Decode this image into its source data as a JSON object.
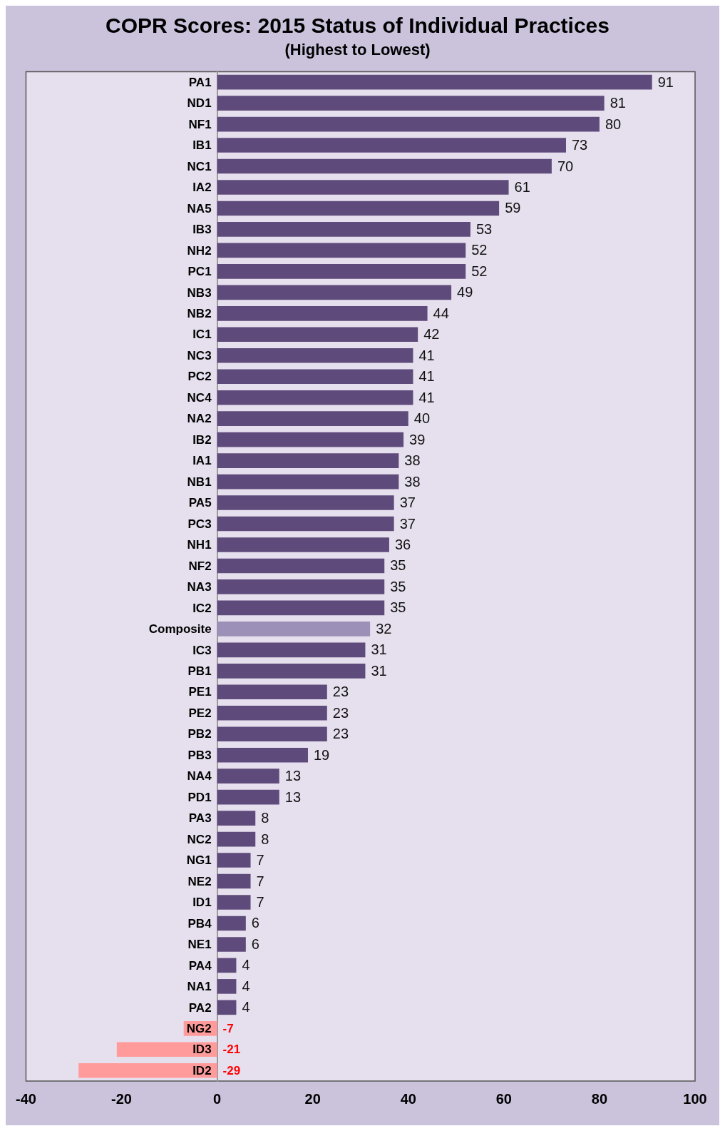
{
  "chart_data": {
    "type": "bar",
    "orientation": "horizontal",
    "title": "COPR Scores: 2015 Status of Individual Practices",
    "subtitle": "(Highest to Lowest)",
    "categories": [
      "PA1",
      "ND1",
      "NF1",
      "IB1",
      "NC1",
      "IA2",
      "NA5",
      "IB3",
      "NH2",
      "PC1",
      "NB3",
      "NB2",
      "IC1",
      "NC3",
      "PC2",
      "NC4",
      "NA2",
      "IB2",
      "IA1",
      "NB1",
      "PA5",
      "PC3",
      "NH1",
      "NF2",
      "NA3",
      "IC2",
      "Composite",
      "IC3",
      "PB1",
      "PE1",
      "PE2",
      "PB2",
      "PB3",
      "NA4",
      "PD1",
      "PA3",
      "NC2",
      "NG1",
      "NE2",
      "ID1",
      "PB4",
      "NE1",
      "PA4",
      "NA1",
      "PA2",
      "NG2",
      "ID3",
      "ID2"
    ],
    "values": [
      91,
      81,
      80,
      73,
      70,
      61,
      59,
      53,
      52,
      52,
      49,
      44,
      42,
      41,
      41,
      41,
      40,
      39,
      38,
      38,
      37,
      37,
      36,
      35,
      35,
      35,
      32,
      31,
      31,
      23,
      23,
      23,
      19,
      13,
      13,
      8,
      8,
      7,
      7,
      7,
      6,
      6,
      4,
      4,
      4,
      -7,
      -21,
      -29
    ],
    "colors": [
      "#5f4b7b",
      "#5f4b7b",
      "#5f4b7b",
      "#5f4b7b",
      "#5f4b7b",
      "#5f4b7b",
      "#5f4b7b",
      "#5f4b7b",
      "#5f4b7b",
      "#5f4b7b",
      "#5f4b7b",
      "#5f4b7b",
      "#5f4b7b",
      "#5f4b7b",
      "#5f4b7b",
      "#5f4b7b",
      "#5f4b7b",
      "#5f4b7b",
      "#5f4b7b",
      "#5f4b7b",
      "#5f4b7b",
      "#5f4b7b",
      "#5f4b7b",
      "#5f4b7b",
      "#5f4b7b",
      "#5f4b7b",
      "#9d90b8",
      "#5f4b7b",
      "#5f4b7b",
      "#5f4b7b",
      "#5f4b7b",
      "#5f4b7b",
      "#5f4b7b",
      "#5f4b7b",
      "#5f4b7b",
      "#5f4b7b",
      "#5f4b7b",
      "#5f4b7b",
      "#5f4b7b",
      "#5f4b7b",
      "#5f4b7b",
      "#5f4b7b",
      "#5f4b7b",
      "#5f4b7b",
      "#5f4b7b",
      "#ff9b9b",
      "#ff9b9b",
      "#ff9b9b"
    ],
    "xlim": [
      -40,
      100
    ],
    "xticks": [
      -40,
      -20,
      0,
      20,
      40,
      60,
      80,
      100
    ],
    "grid": false,
    "legend": false,
    "data_labels": true
  }
}
